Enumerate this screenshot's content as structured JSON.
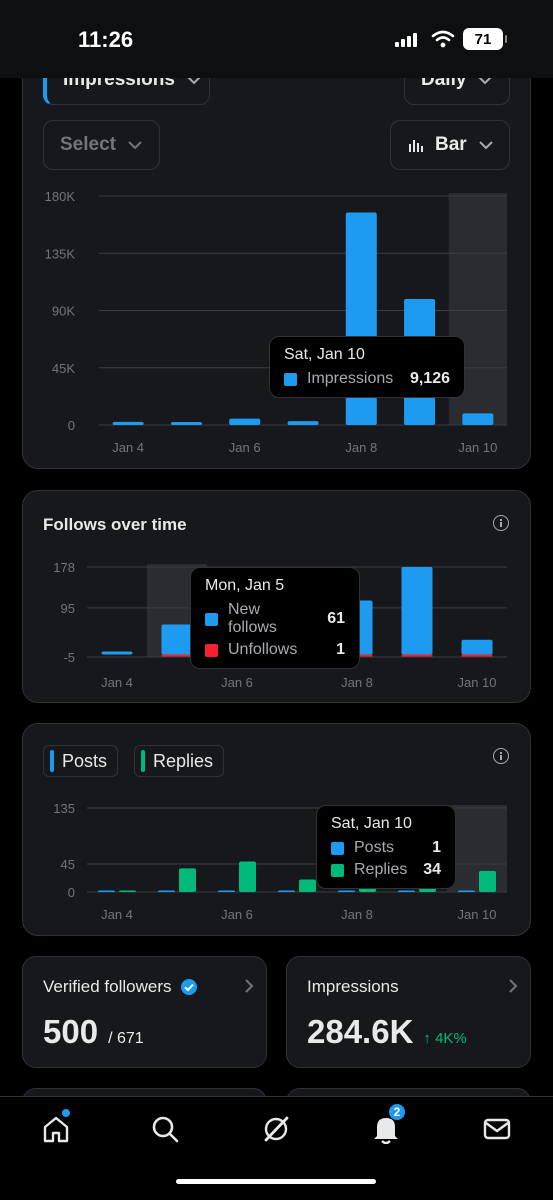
{
  "status_bar": {
    "time": "11:26",
    "battery": "71"
  },
  "controls": {
    "metric": "Impressions",
    "period": "Daily",
    "select_placeholder": "Select",
    "chart_type": "Bar"
  },
  "impressions_chart": {
    "tooltip": {
      "date": "Sat, Jan 10",
      "label": "Impressions",
      "value": "9,126"
    }
  },
  "follows_chart": {
    "title": "Follows over time",
    "tooltip": {
      "date": "Mon, Jan 5",
      "rows": [
        {
          "label": "New follows",
          "value": "61"
        },
        {
          "label": "Unfollows",
          "value": "1"
        }
      ]
    }
  },
  "posts_chart": {
    "legend": {
      "posts": "Posts",
      "replies": "Replies"
    },
    "tooltip": {
      "date": "Sat, Jan 10",
      "rows": [
        {
          "label": "Posts",
          "value": "1"
        },
        {
          "label": "Replies",
          "value": "34"
        }
      ]
    }
  },
  "stats": {
    "verified_followers": {
      "title": "Verified followers",
      "value": "500",
      "total": "/ 671"
    },
    "impressions": {
      "title": "Impressions",
      "value": "284.6K",
      "change": "↑ 4K%"
    }
  },
  "nav": {
    "notifications_badge": "2"
  },
  "colors": {
    "blue": "#1d9bf0",
    "green": "#00ba7c",
    "red": "#f4212e",
    "card": "#16181c",
    "border": "#2f3336"
  },
  "chart_data": [
    {
      "type": "bar",
      "categories": [
        "Jan 4",
        "Jan 5",
        "Jan 6",
        "Jan 7",
        "Jan 8",
        "Jan 9",
        "Jan 10"
      ],
      "series": [
        {
          "name": "Impressions",
          "values": [
            2500,
            2000,
            5000,
            3000,
            167000,
            99000,
            9126
          ]
        }
      ],
      "ylim": [
        0,
        180000
      ],
      "yticks": [
        "0",
        "45K",
        "90K",
        "135K",
        "180K"
      ],
      "ytick_values": [
        0,
        45000,
        90000,
        135000,
        180000
      ],
      "xtick_labels": [
        "Jan 4",
        "Jan 6",
        "Jan 8",
        "Jan 10"
      ],
      "highlight": "Jan 10"
    },
    {
      "type": "bar",
      "categories": [
        "Jan 4",
        "Jan 5",
        "Jan 6",
        "Jan 7",
        "Jan 8",
        "Jan 9",
        "Jan 10"
      ],
      "series": [
        {
          "name": "New follows",
          "values": [
            0,
            61,
            30,
            38,
            110,
            178,
            30
          ]
        },
        {
          "name": "Unfollows",
          "values": [
            0,
            1,
            1,
            3,
            4,
            1,
            1
          ]
        }
      ],
      "ylim": [
        -5,
        178
      ],
      "yticks": [
        "-5",
        "95",
        "178"
      ],
      "ytick_values": [
        -5,
        95,
        178
      ],
      "xtick_labels": [
        "Jan 4",
        "Jan 6",
        "Jan 8",
        "Jan 10"
      ],
      "highlight": "Jan 5"
    },
    {
      "type": "bar",
      "categories": [
        "Jan 4",
        "Jan 5",
        "Jan 6",
        "Jan 7",
        "Jan 8",
        "Jan 9",
        "Jan 10"
      ],
      "series": [
        {
          "name": "Posts",
          "values": [
            0,
            1,
            1,
            1,
            1,
            1,
            1
          ]
        },
        {
          "name": "Replies",
          "values": [
            1,
            38,
            49,
            20,
            30,
            20,
            34
          ]
        }
      ],
      "ylim": [
        0,
        135
      ],
      "yticks": [
        "0",
        "45",
        "135"
      ],
      "ytick_values": [
        0,
        45,
        135
      ],
      "xtick_labels": [
        "Jan 4",
        "Jan 6",
        "Jan 8",
        "Jan 10"
      ],
      "highlight": "Jan 10"
    }
  ]
}
